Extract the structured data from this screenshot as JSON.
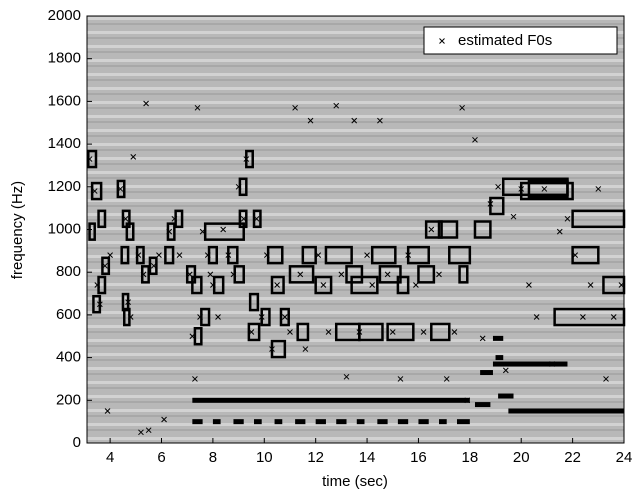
{
  "chart_data": {
    "type": "scatter",
    "xlabel": "time (sec)",
    "ylabel": "frequency (Hz)",
    "xlim": [
      3.1,
      24
    ],
    "ylim": [
      0,
      2000
    ],
    "xticks": [
      4,
      6,
      8,
      10,
      12,
      14,
      16,
      18,
      20,
      22,
      24
    ],
    "yticks": [
      0,
      200,
      400,
      600,
      800,
      1000,
      1200,
      1400,
      1600,
      1800,
      2000
    ],
    "legend": "upper right",
    "series": [
      {
        "name": "estimated F0s",
        "color": "#000000",
        "x": [
          3.2,
          3.4,
          3.5,
          3.6,
          3.8,
          3.9,
          4.0,
          4.4,
          4.6,
          4.7,
          4.8,
          4.9,
          5.1,
          5.2,
          5.3,
          5.4,
          5.5,
          5.7,
          5.9,
          6.1,
          6.3,
          6.5,
          6.7,
          7.1,
          7.2,
          7.3,
          7.4,
          7.5,
          7.6,
          7.8,
          7.9,
          8.0,
          8.2,
          8.4,
          8.6,
          8.8,
          9.0,
          9.2,
          9.3,
          9.5,
          9.7,
          9.9,
          10.1,
          10.3,
          10.5,
          10.8,
          11.0,
          11.2,
          11.4,
          11.6,
          11.8,
          12.1,
          12.3,
          12.5,
          12.8,
          13.0,
          13.2,
          13.5,
          13.7,
          14.0,
          14.2,
          14.5,
          14.8,
          15.0,
          15.3,
          15.6,
          15.9,
          16.2,
          16.5,
          16.8,
          17.1,
          17.4,
          17.7,
          17.9,
          18.2,
          18.5,
          18.8,
          19.1,
          19.4,
          19.7,
          20.0,
          20.3,
          20.6,
          20.9,
          21.2,
          21.5,
          21.8,
          22.1,
          22.4,
          22.7,
          23.0,
          23.3,
          23.6,
          23.9
        ],
        "values": [
          1330,
          1180,
          740,
          650,
          830,
          150,
          880,
          1190,
          1050,
          660,
          590,
          1340,
          880,
          50,
          790,
          1590,
          60,
          830,
          880,
          110,
          990,
          1050,
          880,
          790,
          500,
          300,
          1570,
          590,
          990,
          880,
          790,
          740,
          590,
          1000,
          880,
          790,
          1200,
          1050,
          1330,
          520,
          1050,
          590,
          880,
          440,
          740,
          590,
          520,
          1570,
          790,
          440,
          1510,
          880,
          740,
          520,
          1580,
          790,
          310,
          1510,
          520,
          880,
          740,
          1510,
          790,
          520,
          300,
          880,
          740,
          520,
          1000,
          790,
          300,
          520,
          1570,
          200,
          1420,
          490,
          1120,
          1200,
          340,
          1060,
          1190,
          740,
          590,
          1190,
          370,
          990,
          1050,
          880,
          590,
          740,
          1190,
          300,
          590,
          740
        ]
      }
    ],
    "boxes": {
      "x0": [
        3.15,
        3.3,
        3.2,
        3.55,
        3.7,
        3.55,
        3.35,
        4.3,
        4.5,
        4.65,
        4.45,
        4.5,
        4.55,
        5.05,
        5.25,
        5.55,
        6.25,
        6.55,
        6.15,
        7.0,
        7.2,
        7.3,
        7.7,
        7.55,
        7.85,
        8.05,
        8.6,
        8.85,
        9.05,
        9.05,
        9.3,
        9.6,
        9.45,
        9.4,
        9.9,
        10.15,
        10.3,
        10.3,
        10.65,
        11.0,
        11.3,
        11.5,
        12.0,
        12.4,
        12.8,
        13.2,
        13.4,
        13.7,
        14.2,
        14.5,
        14.8,
        15.2,
        15.6,
        16.0,
        16.3,
        16.5,
        16.8,
        17.2,
        17.6,
        18.2,
        18.8,
        19.3,
        20.3,
        22.0,
        22.0,
        20.0,
        23.2,
        21.3
      ],
      "x1": [
        3.45,
        3.65,
        3.4,
        3.8,
        3.95,
        3.8,
        3.6,
        4.55,
        4.75,
        4.9,
        4.7,
        4.7,
        4.75,
        5.3,
        5.5,
        5.8,
        6.5,
        6.8,
        6.45,
        7.3,
        7.55,
        7.55,
        9.2,
        7.85,
        8.15,
        8.4,
        8.95,
        9.2,
        9.3,
        9.3,
        9.55,
        9.85,
        9.75,
        9.8,
        10.2,
        10.7,
        10.75,
        10.8,
        10.95,
        11.9,
        11.7,
        12.0,
        12.6,
        13.4,
        13.7,
        13.8,
        14.4,
        14.6,
        15.1,
        15.3,
        15.8,
        15.6,
        16.4,
        16.6,
        16.9,
        17.2,
        17.5,
        18.0,
        17.9,
        18.8,
        19.3,
        21.8,
        21.8,
        23.0,
        24.0,
        22.0,
        24.0,
        24.0
      ],
      "y": [
        1330,
        1180,
        990,
        1050,
        830,
        740,
        650,
        1190,
        1050,
        990,
        880,
        660,
        590,
        880,
        790,
        830,
        990,
        1050,
        880,
        790,
        740,
        500,
        990,
        590,
        880,
        740,
        880,
        790,
        1200,
        1050,
        1330,
        1050,
        660,
        520,
        590,
        880,
        740,
        440,
        590,
        790,
        520,
        880,
        740,
        880,
        520,
        790,
        740,
        520,
        880,
        790,
        520,
        740,
        880,
        790,
        1000,
        520,
        1000,
        880,
        790,
        1000,
        1110,
        1200,
        1190,
        880,
        1050,
        1180,
        740,
        590
      ]
    },
    "segments": {
      "x0": [
        7.2,
        7.2,
        8.0,
        8.8,
        9.6,
        10.4,
        11.2,
        12.0,
        12.8,
        13.6,
        14.4,
        15.2,
        16.0,
        16.8,
        17.5,
        18.2,
        18.4,
        18.9,
        19.0,
        19.1,
        18.9,
        19.5
      ],
      "x1": [
        18.0,
        7.6,
        8.3,
        9.2,
        9.9,
        10.7,
        11.6,
        12.4,
        13.2,
        13.9,
        14.8,
        15.6,
        16.4,
        17.1,
        18.0,
        18.8,
        18.9,
        21.8,
        19.3,
        19.7,
        19.3,
        24.0
      ],
      "y": [
        200,
        100,
        100,
        100,
        100,
        100,
        100,
        100,
        100,
        100,
        100,
        100,
        100,
        100,
        100,
        180,
        330,
        370,
        400,
        220,
        490,
        150
      ]
    }
  }
}
